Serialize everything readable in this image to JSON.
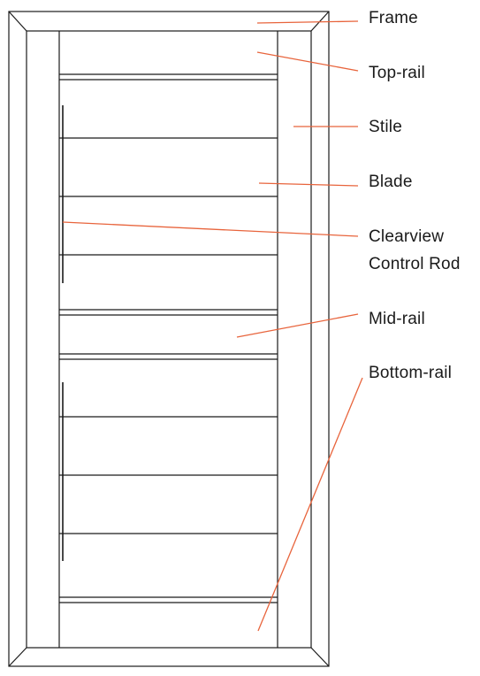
{
  "diagram": {
    "labels": {
      "frame": "Frame",
      "top_rail": "Top-rail",
      "stile": "Stile",
      "blade": "Blade",
      "clearview_line1": "Clearview",
      "clearview_line2": "Control Rod",
      "mid_rail": "Mid-rail",
      "bottom_rail": "Bottom-rail"
    },
    "colors": {
      "outline": "#1a1a1a",
      "leader": "#e8643c",
      "text": "#1a1a1a"
    }
  }
}
